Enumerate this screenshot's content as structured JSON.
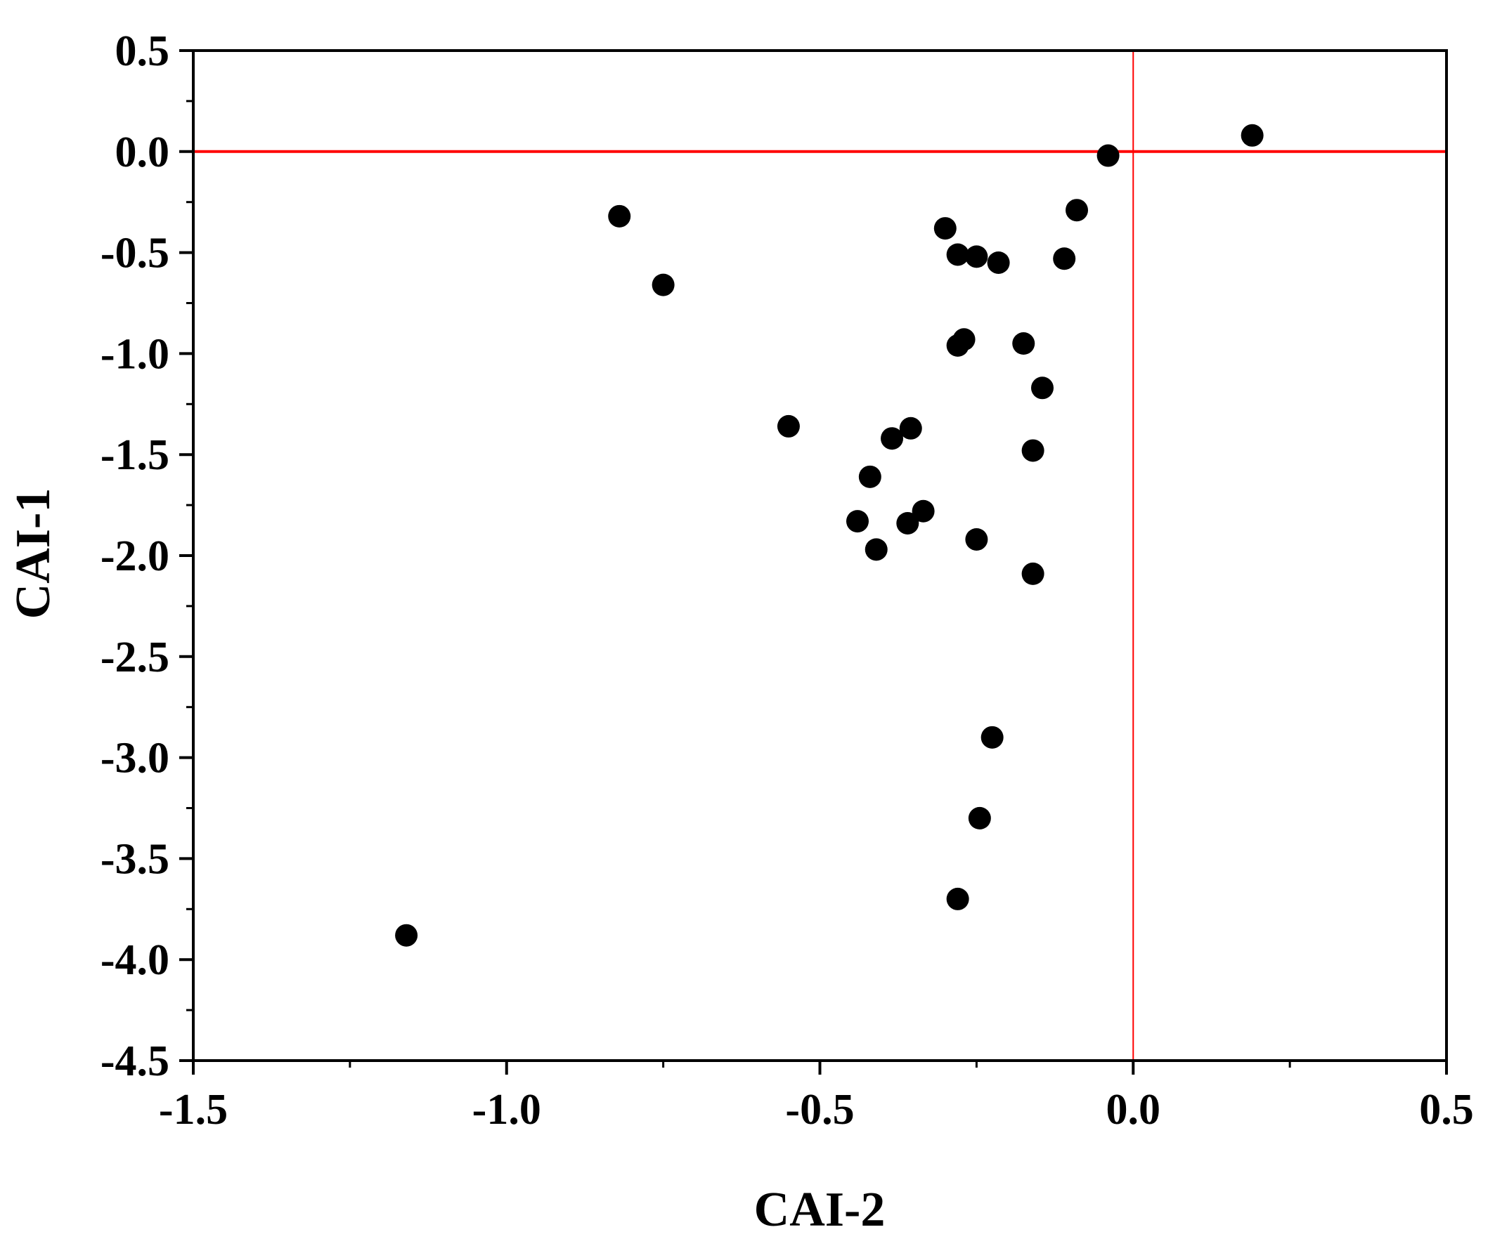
{
  "chart_data": {
    "type": "scatter",
    "title": "",
    "xlabel": "CAI-2",
    "ylabel": "CAI-1",
    "xlim": [
      -1.5,
      0.5
    ],
    "ylim": [
      -4.5,
      0.5
    ],
    "x_ticks": [
      -1.5,
      -1.0,
      -0.5,
      0.0,
      0.5
    ],
    "y_ticks": [
      0.5,
      0.0,
      -0.5,
      -1.0,
      -1.5,
      -2.0,
      -2.5,
      -3.0,
      -3.5,
      -4.0,
      -4.5
    ],
    "x_tick_labels": [
      "-1.5",
      "-1.0",
      "-0.5",
      "0.0",
      "0.5"
    ],
    "y_tick_labels": [
      "0.5",
      "0.0",
      "-0.5",
      "-1.0",
      "-1.5",
      "-2.0",
      "-2.5",
      "-3.0",
      "-3.5",
      "-4.0",
      "-4.5"
    ],
    "grid": false,
    "reference_lines": {
      "horizontal_y": 0.0,
      "vertical_x": 0.0,
      "color": "#ff0000"
    },
    "marker_color": "#000000",
    "points": [
      {
        "x": 0.19,
        "y": 0.08
      },
      {
        "x": -0.04,
        "y": -0.02
      },
      {
        "x": -0.09,
        "y": -0.29
      },
      {
        "x": -0.11,
        "y": -0.53
      },
      {
        "x": -0.82,
        "y": -0.32
      },
      {
        "x": -0.75,
        "y": -0.66
      },
      {
        "x": -0.3,
        "y": -0.38
      },
      {
        "x": -0.28,
        "y": -0.51
      },
      {
        "x": -0.25,
        "y": -0.52
      },
      {
        "x": -0.215,
        "y": -0.55
      },
      {
        "x": -0.28,
        "y": -0.96
      },
      {
        "x": -0.27,
        "y": -0.93
      },
      {
        "x": -0.175,
        "y": -0.95
      },
      {
        "x": -0.145,
        "y": -1.17
      },
      {
        "x": -0.55,
        "y": -1.36
      },
      {
        "x": -0.385,
        "y": -1.42
      },
      {
        "x": -0.355,
        "y": -1.37
      },
      {
        "x": -0.16,
        "y": -1.48
      },
      {
        "x": -0.42,
        "y": -1.61
      },
      {
        "x": -0.44,
        "y": -1.83
      },
      {
        "x": -0.36,
        "y": -1.84
      },
      {
        "x": -0.335,
        "y": -1.78
      },
      {
        "x": -0.41,
        "y": -1.97
      },
      {
        "x": -0.25,
        "y": -1.92
      },
      {
        "x": -0.16,
        "y": -2.09
      },
      {
        "x": -0.225,
        "y": -2.9
      },
      {
        "x": -0.245,
        "y": -3.3
      },
      {
        "x": -0.28,
        "y": -3.7
      },
      {
        "x": -1.16,
        "y": -3.88
      }
    ]
  }
}
